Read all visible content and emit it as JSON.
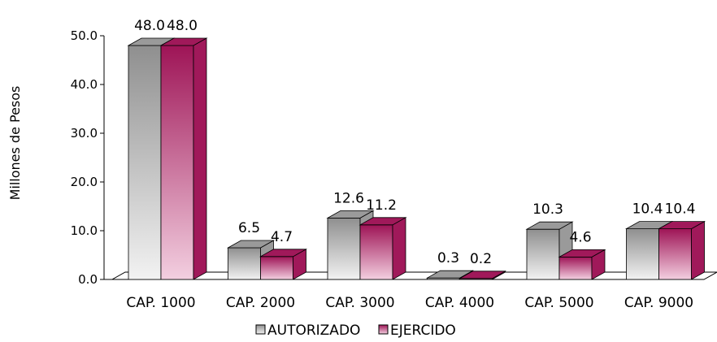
{
  "chart_data": {
    "type": "bar",
    "ylabel": "Millones de Pesos",
    "ylim": [
      0,
      50
    ],
    "yticks": [
      "0.0",
      "10.0",
      "20.0",
      "30.0",
      "40.0",
      "50.0"
    ],
    "categories": [
      "CAP. 1000",
      "CAP. 2000",
      "CAP. 3000",
      "CAP. 4000",
      "CAP. 5000",
      "CAP. 9000"
    ],
    "series": [
      {
        "name": "AUTORIZADO",
        "values": [
          48.0,
          6.5,
          12.6,
          0.3,
          10.3,
          10.4
        ],
        "labels": [
          "48.0",
          "6.5",
          "12.6",
          "0.3",
          "10.3",
          "10.4"
        ],
        "color": "#9a9a9a",
        "color_light": "#ececec"
      },
      {
        "name": "EJERCIDO",
        "values": [
          48.0,
          4.7,
          11.2,
          0.2,
          4.6,
          10.4
        ],
        "labels": [
          "48.0",
          "4.7",
          "11.2",
          "0.2",
          "4.6",
          "10.4"
        ],
        "color": "#a0195a",
        "color_light": "#f0c6da"
      }
    ],
    "grid": false,
    "legend_position": "bottom",
    "style": "3d"
  }
}
